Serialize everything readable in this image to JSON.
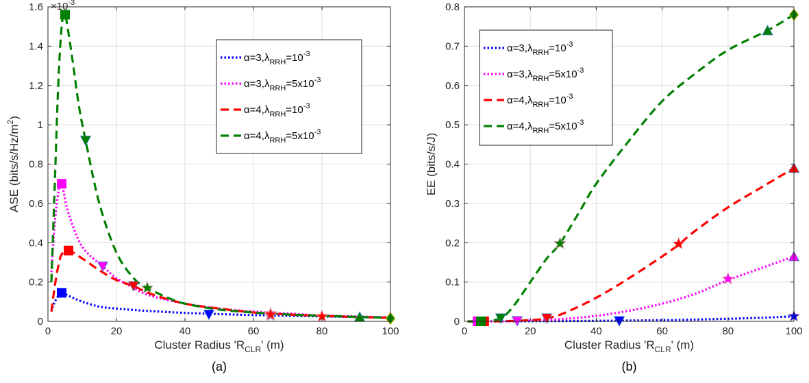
{
  "chart_data": [
    {
      "type": "line",
      "caption": "(a)",
      "xlabel": "Cluster Radius 'R",
      "xlabel_sub": "CLR",
      "xlabel_tail": "' (m)",
      "ylabel": "ASE (bits/s/Hz/m",
      "ylabel_sup": "2",
      "ylabel_tail": ")",
      "y_multiplier": "×10",
      "y_multiplier_exp": "-3",
      "xlim": [
        0,
        100
      ],
      "ylim": [
        0,
        1.6
      ],
      "xticks": [
        0,
        20,
        40,
        60,
        80,
        100
      ],
      "yticks": [
        0,
        0.2,
        0.4,
        0.6,
        0.8,
        1,
        1.2,
        1.4,
        1.6
      ],
      "ytick_labels": [
        "0",
        "0.2",
        "0.4",
        "0.6",
        "0.8",
        "1",
        "1.2",
        "1.4",
        "1.6"
      ],
      "grid": true,
      "legend_position": "top-right",
      "series": [
        {
          "name": "α=3,λ",
          "name_sub": "RRH",
          "name_tail": "=10",
          "name_sup": "-3",
          "color": "#0000ff",
          "style": "dotted",
          "x": [
            1,
            2,
            4,
            6,
            10,
            15,
            20,
            25,
            30,
            40,
            50,
            60,
            70,
            80,
            90,
            100
          ],
          "y": [
            0.05,
            0.1,
            0.145,
            0.13,
            0.1,
            0.075,
            0.065,
            0.058,
            0.052,
            0.043,
            0.037,
            0.032,
            0.028,
            0.025,
            0.022,
            0.02
          ],
          "markers": [
            {
              "x": 4,
              "y": 0.145,
              "shape": "square"
            },
            {
              "x": 47,
              "y": 0.035,
              "shape": "triangle-down"
            },
            {
              "x": 65,
              "y": 0.03,
              "shape": "star"
            },
            {
              "x": 80,
              "y": 0.025,
              "shape": "star"
            },
            {
              "x": 91,
              "y": 0.022,
              "shape": "triangle-up"
            },
            {
              "x": 100,
              "y": 0.015,
              "shape": "diamond"
            }
          ]
        },
        {
          "name": "α=3,λ",
          "name_sub": "RRH",
          "name_tail": "=5x10",
          "name_sup": "-3",
          "color": "#ff00ff",
          "style": "dotted",
          "x": [
            1,
            2,
            3,
            4,
            6,
            10,
            16,
            20,
            25,
            30,
            40,
            50,
            60,
            70,
            80,
            90,
            100
          ],
          "y": [
            0.25,
            0.5,
            0.65,
            0.7,
            0.55,
            0.38,
            0.28,
            0.22,
            0.17,
            0.13,
            0.09,
            0.065,
            0.05,
            0.04,
            0.03,
            0.025,
            0.02
          ],
          "markers": [
            {
              "x": 4,
              "y": 0.7,
              "shape": "square"
            },
            {
              "x": 16,
              "y": 0.28,
              "shape": "triangle-down"
            },
            {
              "x": 65,
              "y": 0.04,
              "shape": "star"
            },
            {
              "x": 80,
              "y": 0.025,
              "shape": "star"
            },
            {
              "x": 100,
              "y": 0.015,
              "shape": "diamond"
            }
          ]
        },
        {
          "name": "α=4,λ",
          "name_sub": "RRH",
          "name_tail": "=10",
          "name_sup": "-3",
          "color": "#ff0000",
          "style": "dashed",
          "x": [
            1,
            2,
            3,
            4,
            6,
            10,
            15,
            20,
            25,
            30,
            40,
            50,
            60,
            70,
            80,
            90,
            100
          ],
          "y": [
            0.05,
            0.18,
            0.28,
            0.34,
            0.36,
            0.32,
            0.26,
            0.21,
            0.18,
            0.14,
            0.09,
            0.065,
            0.045,
            0.035,
            0.028,
            0.022,
            0.018
          ],
          "markers": [
            {
              "x": 6,
              "y": 0.36,
              "shape": "square"
            },
            {
              "x": 25,
              "y": 0.18,
              "shape": "triangle-down"
            },
            {
              "x": 65,
              "y": 0.035,
              "shape": "star"
            },
            {
              "x": 80,
              "y": 0.025,
              "shape": "star"
            },
            {
              "x": 100,
              "y": 0.015,
              "shape": "diamond"
            }
          ]
        },
        {
          "name": "α=4,λ",
          "name_sub": "RRH",
          "name_tail": "=5x10",
          "name_sup": "-3",
          "color": "#008000",
          "style": "dashed",
          "x": [
            1,
            2,
            3,
            4,
            5,
            7,
            9,
            11,
            15,
            20,
            25,
            29,
            35,
            40,
            50,
            60,
            70,
            80,
            90,
            100
          ],
          "y": [
            0.2,
            0.7,
            1.2,
            1.5,
            1.56,
            1.35,
            1.1,
            0.92,
            0.6,
            0.35,
            0.22,
            0.17,
            0.12,
            0.09,
            0.06,
            0.045,
            0.035,
            0.028,
            0.023,
            0.018
          ],
          "markers": [
            {
              "x": 5,
              "y": 1.56,
              "shape": "square"
            },
            {
              "x": 11,
              "y": 0.92,
              "shape": "triangle-down"
            },
            {
              "x": 29,
              "y": 0.17,
              "shape": "star"
            },
            {
              "x": 91,
              "y": 0.022,
              "shape": "triangle-up"
            },
            {
              "x": 100,
              "y": 0.015,
              "shape": "diamond"
            }
          ]
        }
      ]
    },
    {
      "type": "line",
      "caption": "(b)",
      "xlabel": "Cluster Radius 'R",
      "xlabel_sub": "CLR",
      "xlabel_tail": "' (m)",
      "ylabel": "EE (bits/s/J)",
      "xlim": [
        0,
        100
      ],
      "ylim": [
        0,
        0.8
      ],
      "xticks": [
        0,
        20,
        40,
        60,
        80,
        100
      ],
      "yticks": [
        0,
        0.1,
        0.2,
        0.3,
        0.4,
        0.5,
        0.6,
        0.7,
        0.8
      ],
      "ytick_labels": [
        "0",
        "0.1",
        "0.2",
        "0.3",
        "0.4",
        "0.5",
        "0.6",
        "0.7",
        "0.8"
      ],
      "grid": true,
      "legend_position": "top-left",
      "series": [
        {
          "name": "α=3,λ",
          "name_sub": "RRH",
          "name_tail": "=10",
          "name_sup": "-3",
          "color": "#0000ff",
          "style": "dotted",
          "x": [
            1,
            10,
            20,
            30,
            40,
            50,
            60,
            70,
            80,
            90,
            100
          ],
          "y": [
            0,
            0,
            0.0003,
            0.0007,
            0.0012,
            0.002,
            0.003,
            0.0045,
            0.0065,
            0.009,
            0.013
          ],
          "markers": [
            {
              "x": 4,
              "y": 0,
              "shape": "square"
            },
            {
              "x": 47,
              "y": 0.001,
              "shape": "triangle-down"
            },
            {
              "x": 100,
              "y": 0.013,
              "shape": "star"
            }
          ]
        },
        {
          "name": "α=3,λ",
          "name_sub": "RRH",
          "name_tail": "=5x10",
          "name_sup": "-3",
          "color": "#ff00ff",
          "style": "dotted",
          "x": [
            1,
            10,
            16,
            20,
            30,
            40,
            50,
            60,
            70,
            80,
            90,
            100
          ],
          "y": [
            0,
            0,
            0.001,
            0.002,
            0.006,
            0.014,
            0.027,
            0.045,
            0.07,
            0.105,
            0.135,
            0.165
          ],
          "markers": [
            {
              "x": 4,
              "y": 0,
              "shape": "square"
            },
            {
              "x": 16,
              "y": 0.001,
              "shape": "triangle-down"
            },
            {
              "x": 80,
              "y": 0.108,
              "shape": "star"
            },
            {
              "x": 100,
              "y": 0.165,
              "shape": "triangle-up"
            }
          ]
        },
        {
          "name": "α=4,λ",
          "name_sub": "RRH",
          "name_tail": "=10",
          "name_sup": "-3",
          "color": "#ff0000",
          "style": "dashed",
          "x": [
            1,
            10,
            20,
            25,
            30,
            40,
            50,
            60,
            65,
            70,
            80,
            90,
            100
          ],
          "y": [
            0,
            0,
            0.003,
            0.008,
            0.02,
            0.06,
            0.11,
            0.165,
            0.195,
            0.23,
            0.29,
            0.34,
            0.39
          ],
          "markers": [
            {
              "x": 6,
              "y": 0,
              "shape": "square"
            },
            {
              "x": 25,
              "y": 0.008,
              "shape": "triangle-down"
            },
            {
              "x": 65,
              "y": 0.197,
              "shape": "star"
            },
            {
              "x": 100,
              "y": 0.39,
              "shape": "triangle-up"
            }
          ]
        },
        {
          "name": "α=4,λ",
          "name_sub": "RRH",
          "name_tail": "=5x10",
          "name_sup": "-3",
          "color": "#008000",
          "style": "dashed",
          "x": [
            1,
            5,
            11,
            15,
            20,
            25,
            29,
            35,
            40,
            50,
            60,
            70,
            80,
            92,
            100
          ],
          "y": [
            0,
            0,
            0.008,
            0.04,
            0.1,
            0.16,
            0.198,
            0.28,
            0.35,
            0.46,
            0.56,
            0.63,
            0.69,
            0.74,
            0.78
          ],
          "markers": [
            {
              "x": 5,
              "y": 0,
              "shape": "square"
            },
            {
              "x": 11,
              "y": 0.008,
              "shape": "triangle-down"
            },
            {
              "x": 29,
              "y": 0.198,
              "shape": "star"
            },
            {
              "x": 92,
              "y": 0.74,
              "shape": "triangle-up"
            },
            {
              "x": 100,
              "y": 0.78,
              "shape": "diamond"
            }
          ]
        }
      ]
    }
  ]
}
